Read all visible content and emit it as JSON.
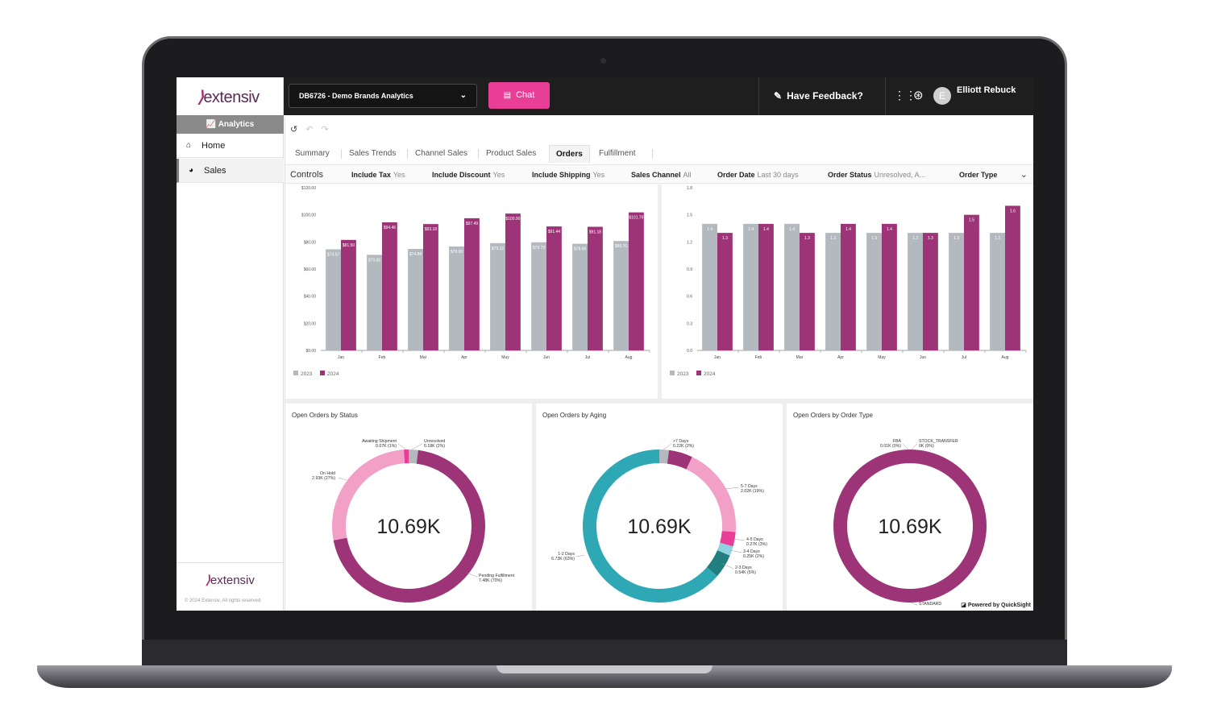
{
  "sidebar": {
    "logo": "extensiv",
    "section_label": "Analytics",
    "items": [
      {
        "label": "Home",
        "icon": "home-icon",
        "active": false
      },
      {
        "label": "Sales",
        "icon": "pie-icon",
        "active": true
      }
    ],
    "footer_logo": "extensiv",
    "copyright": "© 2024 Extensiv, All rights reserved"
  },
  "topbar": {
    "dashboard_select": "DB6726 - Demo Brands Analytics",
    "chat_label": "Chat",
    "feedback_label": "Have Feedback?",
    "user_initial": "E",
    "user_name": "Elliott Rebuck"
  },
  "tabs": [
    {
      "label": "Summary",
      "active": false
    },
    {
      "label": "Sales Trends",
      "active": false
    },
    {
      "label": "Channel Sales",
      "active": false
    },
    {
      "label": "Product Sales",
      "active": false
    },
    {
      "label": "Orders",
      "active": true
    },
    {
      "label": "Fulfillment",
      "active": false
    }
  ],
  "controls": {
    "title": "Controls",
    "items": [
      {
        "label": "Include Tax",
        "value": "Yes"
      },
      {
        "label": "Include Discount",
        "value": "Yes"
      },
      {
        "label": "Include Shipping",
        "value": "Yes"
      },
      {
        "label": "Sales Channel",
        "value": "All"
      },
      {
        "label": "Order Date",
        "value": "Last 30 days"
      },
      {
        "label": "Order Status",
        "value": "Unresolved, A..."
      },
      {
        "label": "Order Type",
        "value": ""
      }
    ]
  },
  "powered_by": "Powered by QuickSight",
  "colors": {
    "y2023": "#b3b9bf",
    "y2024": "#9c3477",
    "onhold": "#f2a0c8",
    "teal": "#2ea8b4",
    "dark_teal": "#217f7f",
    "pink": "#e83e97",
    "light_blue": "#8fd3e0"
  },
  "chart_data": [
    {
      "type": "bar",
      "categories": [
        "Jan",
        "Feb",
        "Mar",
        "Apr",
        "May",
        "Jun",
        "Jul",
        "Aug"
      ],
      "series": [
        {
          "name": "2023",
          "values": [
            74.57,
            70.5,
            74.84,
            76.66,
            79.12,
            79.73,
            78.66,
            80.7
          ],
          "labels": [
            "$74.57",
            "$70.50",
            "$74.84",
            "$76.66",
            "$79.12",
            "$79.73",
            "$78.66",
            "$80.70"
          ]
        },
        {
          "name": "2024",
          "values": [
            81.5,
            94.46,
            93.18,
            97.49,
            100.9,
            91.44,
            91.18,
            101.79
          ],
          "labels": [
            "$81.50",
            "$94.46",
            "$93.18",
            "$97.49",
            "$100.90",
            "$91.44",
            "$91.18",
            "$101.79"
          ]
        }
      ],
      "yticks": [
        "$0.00",
        "$20.00",
        "$40.00",
        "$60.00",
        "$80.00",
        "$100.00",
        "$120.00"
      ],
      "ylim": [
        0,
        120
      ],
      "legend": "bottom-left"
    },
    {
      "type": "bar",
      "categories": [
        "Jan",
        "Feb",
        "Mar",
        "Apr",
        "May",
        "Jun",
        "Jul",
        "Aug"
      ],
      "series": [
        {
          "name": "2023",
          "values": [
            1.4,
            1.4,
            1.4,
            1.3,
            1.3,
            1.3,
            1.3,
            1.3
          ],
          "labels": [
            "1.4",
            "1.4",
            "1.4",
            "1.3",
            "1.3",
            "1.3",
            "1.3",
            "1.3"
          ]
        },
        {
          "name": "2024",
          "values": [
            1.3,
            1.4,
            1.3,
            1.4,
            1.4,
            1.3,
            1.5,
            1.6
          ],
          "labels": [
            "1.3",
            "1.4",
            "1.3",
            "1.4",
            "1.4",
            "1.3",
            "1.5",
            "1.6"
          ]
        }
      ],
      "yticks": [
        "0.0",
        "0.3",
        "0.6",
        "0.9",
        "1.2",
        "1.5",
        "1.8"
      ],
      "ylim": [
        0,
        1.8
      ],
      "legend": "bottom-left"
    },
    {
      "type": "pie",
      "title": "Open Orders by Status",
      "center_label": "10.69K",
      "slices": [
        {
          "name": "Unresolved",
          "value_label": "0.18K (2%)",
          "percent": 2,
          "color": "#b3b9bf"
        },
        {
          "name": "Pending Fulfillment",
          "value_label": "7.48K (70%)",
          "percent": 70,
          "color": "#9c3477"
        },
        {
          "name": "On Hold",
          "value_label": "2.93K (27%)",
          "percent": 27,
          "color": "#f2a0c8"
        },
        {
          "name": "Awaiting Shipment",
          "value_label": "0.07K (1%)",
          "percent": 1,
          "color": "#e83e97"
        }
      ]
    },
    {
      "type": "pie",
      "title": "Open Orders by Aging",
      "center_label": "10.69K",
      "slices": [
        {
          "name": ">7 Days",
          "value_label": "0.22K (2%)",
          "percent": 2,
          "color": "#b3b9bf"
        },
        {
          "name": "",
          "value_label": "",
          "percent": 5,
          "color": "#9c3477"
        },
        {
          "name": "5-7 Days",
          "value_label": "2.02K (19%)",
          "percent": 19,
          "color": "#f2a0c8"
        },
        {
          "name": "4-5 Days",
          "value_label": "0.27K (3%)",
          "percent": 3,
          "color": "#e83e97"
        },
        {
          "name": "3-4 Days",
          "value_label": "0.25K (2%)",
          "percent": 2,
          "color": "#8fd3e0"
        },
        {
          "name": "2-3 Days",
          "value_label": "0.54K (5%)",
          "percent": 5,
          "color": "#217f7f"
        },
        {
          "name": "1-2 Days",
          "value_label": "6.73K (63%)",
          "percent": 63,
          "color": "#2ea8b4"
        }
      ]
    },
    {
      "type": "pie",
      "title": "Open Orders by Order Type",
      "center_label": "10.69K",
      "slices": [
        {
          "name": "STOCK_TRANSFER",
          "value_label": "0K (0%)",
          "percent": 0,
          "color": "#9c3477"
        },
        {
          "name": "STANDARD",
          "value_label": "",
          "percent": 100,
          "color": "#9c3477"
        },
        {
          "name": "FBA",
          "value_label": "0.01K (0%)",
          "percent": 0,
          "color": "#9c3477"
        }
      ]
    }
  ]
}
